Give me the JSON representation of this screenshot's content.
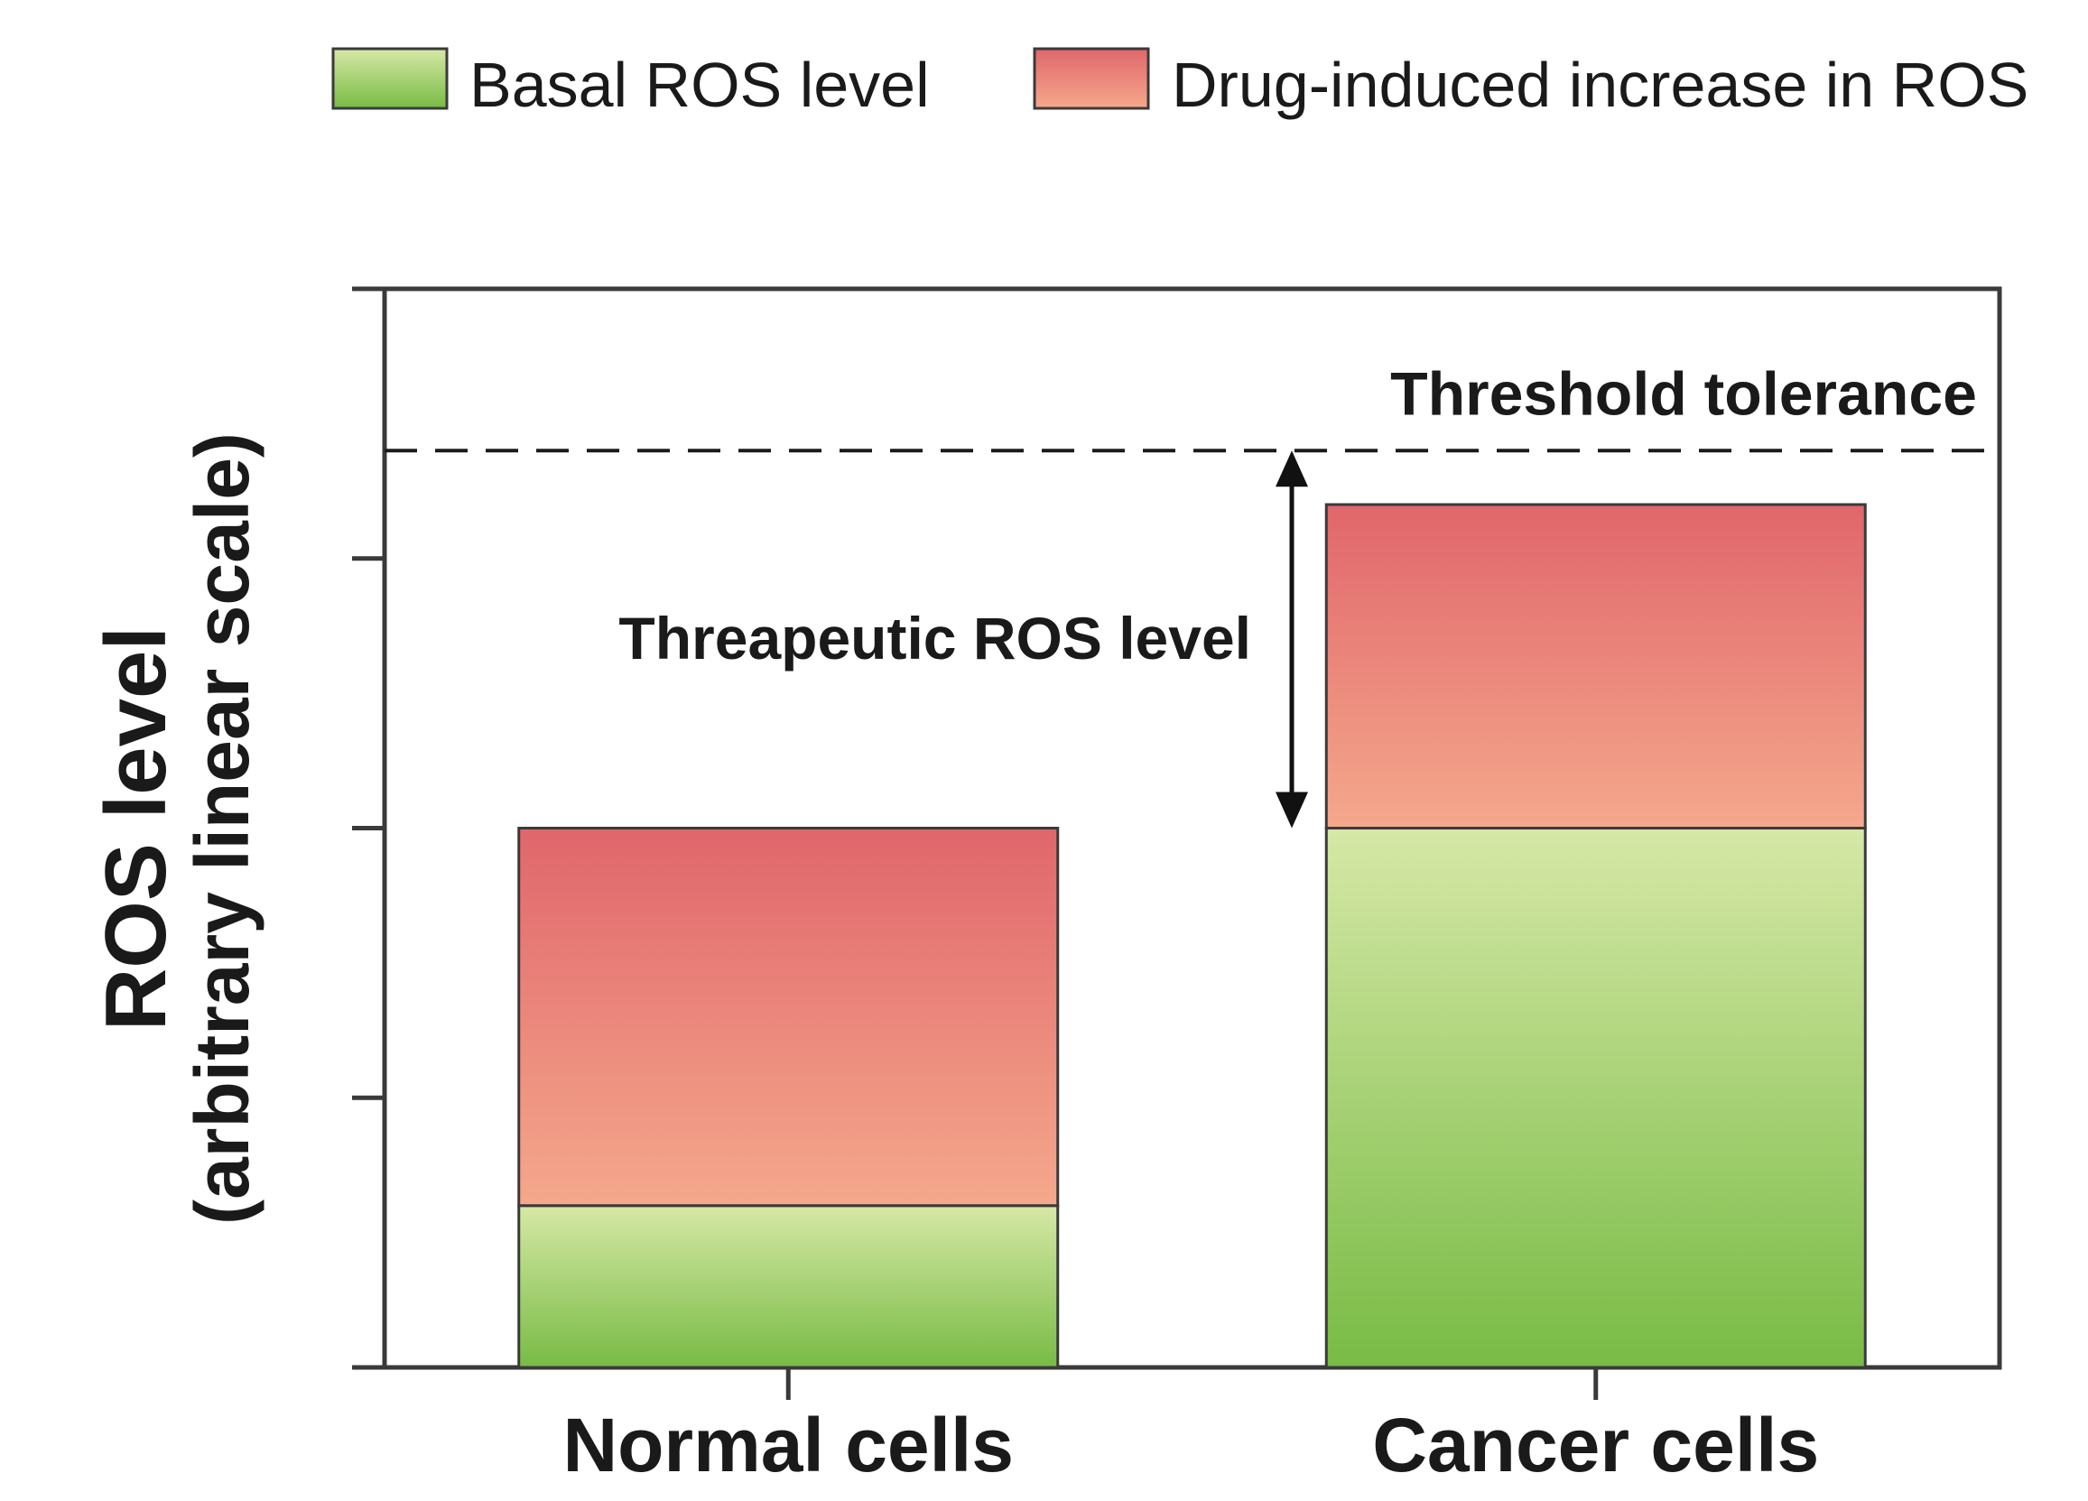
{
  "chart_data": {
    "type": "bar",
    "stacked": true,
    "title": "",
    "xlabel": "",
    "ylabel": "ROS level",
    "ylabel_sub": "(arbitrary linear scale)",
    "categories": [
      "Normal cells",
      "Cancer cells"
    ],
    "series": [
      {
        "name": "Basal ROS level",
        "values": [
          0.6,
          2.0
        ],
        "color_top": "#d6e8a6",
        "color_bottom": "#78bb45"
      },
      {
        "name": "Drug-induced increase in ROS",
        "values": [
          1.4,
          1.2
        ],
        "color_top": "#e0666b",
        "color_bottom": "#f5a88c"
      }
    ],
    "ylim": [
      0,
      4
    ],
    "yticks": [
      0,
      1,
      2,
      3,
      4
    ],
    "show_ytick_labels": false,
    "grid": false,
    "legend_position": "top",
    "threshold": {
      "value": 3.4,
      "label": "Threshold tolerance"
    },
    "annotation": {
      "label": "Threapeutic ROS level",
      "from": 2.0,
      "to": 3.4
    }
  }
}
